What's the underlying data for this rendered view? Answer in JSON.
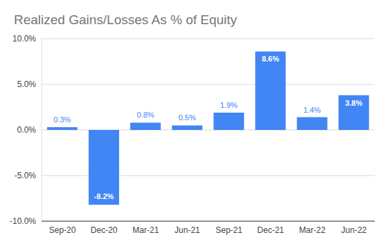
{
  "chart_data": {
    "type": "bar",
    "title": "Realized Gains/Losses As % of Equity",
    "categories": [
      "Sep-20",
      "Dec-20",
      "Mar-21",
      "Jun-21",
      "Sep-21",
      "Dec-21",
      "Mar-22",
      "Jun-22"
    ],
    "values": [
      0.3,
      -8.2,
      0.8,
      0.5,
      1.9,
      8.6,
      1.4,
      3.8
    ],
    "value_labels": [
      "0.3%",
      "-8.2%",
      "0.8%",
      "0.5%",
      "1.9%",
      "8.6%",
      "1.4%",
      "3.8%"
    ],
    "color": "#4285f4",
    "ylim": [
      -10,
      10
    ],
    "yticks": [
      {
        "value": -10,
        "label": "-10.0%"
      },
      {
        "value": -5,
        "label": "-5.0%"
      },
      {
        "value": 0,
        "label": "0.0%"
      },
      {
        "value": 5,
        "label": "5.0%"
      },
      {
        "value": 10,
        "label": "10.0%"
      }
    ],
    "grid": true,
    "data_labels": true
  }
}
